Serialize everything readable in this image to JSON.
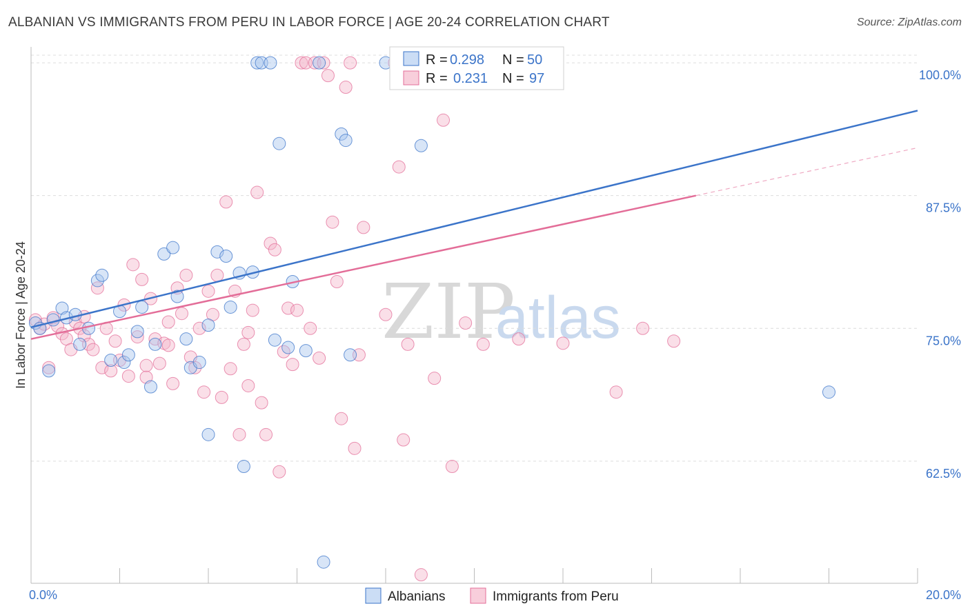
{
  "title": "ALBANIAN VS IMMIGRANTS FROM PERU IN LABOR FORCE | AGE 20-24 CORRELATION CHART",
  "source": "Source: ZipAtlas.com",
  "watermark": {
    "zip": "ZIP",
    "atlas": "atlas"
  },
  "colors": {
    "blue": "#3b74c9",
    "blue_fill": "#a9c6ee",
    "pink": "#e36d98",
    "pink_fill": "#f5b9cc",
    "grid": "#dcdcdc"
  },
  "legend_top": {
    "rows": [
      {
        "r_label": "R = ",
        "r_value": "0.298",
        "n_label": "N = ",
        "n_value": "50"
      },
      {
        "r_label": "R = ",
        "r_value": "0.231",
        "n_label": "N = ",
        "n_value": "97"
      }
    ]
  },
  "legend_bottom": [
    "Albanians",
    "Immigrants from Peru"
  ],
  "chart_data": {
    "type": "scatter",
    "title": "ALBANIAN VS IMMIGRANTS FROM PERU IN LABOR FORCE | AGE 20-24 CORRELATION CHART",
    "xlabel": "",
    "ylabel": "In Labor Force | Age 20-24",
    "xlim": [
      0,
      20
    ],
    "ylim": [
      51,
      101.5
    ],
    "x_tick_labels": [
      "0.0%",
      "20.0%"
    ],
    "y_ticks": [
      62.5,
      75.0,
      87.5,
      100.0
    ],
    "y_tick_labels": [
      "62.5%",
      "75.0%",
      "87.5%",
      "100.0%"
    ],
    "grid": "horizontal dashed",
    "legend_placement": "top-center",
    "series": [
      {
        "name": "Albanians",
        "r": 0.298,
        "n": 50,
        "trend": {
          "x": [
            0.0,
            20.0
          ],
          "y": [
            75.1,
            95.5
          ]
        },
        "points": [
          [
            0.1,
            75.5
          ],
          [
            0.2,
            75.0
          ],
          [
            0.4,
            71.0
          ],
          [
            0.5,
            75.8
          ],
          [
            0.7,
            76.9
          ],
          [
            0.8,
            76.0
          ],
          [
            1.0,
            76.3
          ],
          [
            1.1,
            73.5
          ],
          [
            1.3,
            75.0
          ],
          [
            1.5,
            79.5
          ],
          [
            1.6,
            80.0
          ],
          [
            1.8,
            72.0
          ],
          [
            2.0,
            76.6
          ],
          [
            2.1,
            71.8
          ],
          [
            2.2,
            72.5
          ],
          [
            2.4,
            74.7
          ],
          [
            2.5,
            77.0
          ],
          [
            2.7,
            69.5
          ],
          [
            2.8,
            73.5
          ],
          [
            3.0,
            82.0
          ],
          [
            3.2,
            82.6
          ],
          [
            3.3,
            78.0
          ],
          [
            3.5,
            74.0
          ],
          [
            3.6,
            71.3
          ],
          [
            3.8,
            71.8
          ],
          [
            4.0,
            65.0
          ],
          [
            4.0,
            75.3
          ],
          [
            4.2,
            82.2
          ],
          [
            4.4,
            81.8
          ],
          [
            4.5,
            77.0
          ],
          [
            4.7,
            80.2
          ],
          [
            4.8,
            62.0
          ],
          [
            5.0,
            80.3
          ],
          [
            5.1,
            100.0
          ],
          [
            5.2,
            100.0
          ],
          [
            5.4,
            100.0
          ],
          [
            5.5,
            73.9
          ],
          [
            5.6,
            92.4
          ],
          [
            5.8,
            73.2
          ],
          [
            5.9,
            79.4
          ],
          [
            6.2,
            72.9
          ],
          [
            6.5,
            100.0
          ],
          [
            6.6,
            53.0
          ],
          [
            7.0,
            93.3
          ],
          [
            7.1,
            92.7
          ],
          [
            7.2,
            72.5
          ],
          [
            8.0,
            100.0
          ],
          [
            8.5,
            100.0
          ],
          [
            8.8,
            92.2
          ],
          [
            18.0,
            69.0
          ]
        ]
      },
      {
        "name": "Immigrants from Peru",
        "r": 0.231,
        "n": 97,
        "trend": {
          "x": [
            0.0,
            15.0
          ],
          "y": [
            74.0,
            87.5
          ]
        },
        "trend_ext": {
          "x": [
            15.0,
            20.0
          ],
          "y": [
            87.5,
            92.0
          ]
        },
        "points": [
          [
            0.1,
            75.8
          ],
          [
            0.2,
            75.0
          ],
          [
            0.3,
            75.4
          ],
          [
            0.4,
            71.3
          ],
          [
            0.5,
            76.0
          ],
          [
            0.6,
            75.2
          ],
          [
            0.7,
            74.5
          ],
          [
            0.8,
            74.0
          ],
          [
            0.9,
            73.0
          ],
          [
            1.0,
            75.6
          ],
          [
            1.1,
            75.0
          ],
          [
            1.2,
            74.3
          ],
          [
            1.3,
            73.5
          ],
          [
            1.4,
            73.0
          ],
          [
            1.5,
            78.8
          ],
          [
            1.6,
            71.3
          ],
          [
            1.7,
            75.0
          ],
          [
            1.8,
            71.0
          ],
          [
            1.9,
            73.8
          ],
          [
            2.0,
            72.0
          ],
          [
            2.1,
            77.2
          ],
          [
            2.2,
            70.5
          ],
          [
            2.3,
            81.0
          ],
          [
            2.4,
            74.2
          ],
          [
            2.5,
            79.6
          ],
          [
            2.6,
            70.4
          ],
          [
            2.7,
            77.8
          ],
          [
            2.8,
            74.0
          ],
          [
            2.9,
            71.7
          ],
          [
            3.0,
            73.6
          ],
          [
            3.1,
            75.6
          ],
          [
            3.2,
            69.8
          ],
          [
            3.3,
            78.8
          ],
          [
            3.4,
            76.4
          ],
          [
            3.5,
            80.0
          ],
          [
            3.6,
            72.3
          ],
          [
            3.7,
            71.3
          ],
          [
            3.8,
            75.0
          ],
          [
            3.9,
            69.0
          ],
          [
            4.0,
            78.5
          ],
          [
            4.1,
            76.3
          ],
          [
            4.2,
            80.0
          ],
          [
            4.3,
            68.5
          ],
          [
            4.4,
            86.9
          ],
          [
            4.5,
            71.2
          ],
          [
            4.6,
            78.5
          ],
          [
            4.7,
            65.0
          ],
          [
            4.8,
            73.5
          ],
          [
            4.9,
            69.6
          ],
          [
            5.0,
            76.7
          ],
          [
            5.1,
            87.8
          ],
          [
            5.2,
            68.0
          ],
          [
            5.3,
            65.0
          ],
          [
            5.4,
            83.0
          ],
          [
            5.5,
            82.4
          ],
          [
            5.6,
            61.5
          ],
          [
            5.7,
            72.8
          ],
          [
            5.8,
            76.9
          ],
          [
            5.9,
            71.6
          ],
          [
            6.0,
            76.7
          ],
          [
            6.1,
            100.0
          ],
          [
            6.2,
            100.0
          ],
          [
            6.3,
            75.0
          ],
          [
            6.4,
            100.0
          ],
          [
            6.6,
            100.0
          ],
          [
            6.7,
            98.8
          ],
          [
            6.8,
            85.0
          ],
          [
            6.9,
            79.4
          ],
          [
            7.0,
            66.5
          ],
          [
            7.1,
            97.7
          ],
          [
            7.2,
            100.0
          ],
          [
            7.3,
            63.7
          ],
          [
            7.4,
            72.5
          ],
          [
            7.5,
            84.5
          ],
          [
            8.0,
            76.3
          ],
          [
            8.2,
            100.0
          ],
          [
            8.3,
            90.2
          ],
          [
            8.4,
            64.5
          ],
          [
            8.5,
            73.5
          ],
          [
            8.8,
            51.8
          ],
          [
            8.9,
            98.2
          ],
          [
            9.1,
            70.3
          ],
          [
            9.3,
            94.6
          ],
          [
            9.5,
            62.0
          ],
          [
            9.8,
            75.5
          ],
          [
            10.2,
            73.5
          ],
          [
            10.6,
            100.0
          ],
          [
            11.0,
            74.0
          ],
          [
            12.0,
            73.6
          ],
          [
            13.2,
            69.0
          ],
          [
            13.8,
            75.0
          ],
          [
            14.5,
            73.8
          ],
          [
            3.1,
            73.4
          ],
          [
            1.2,
            76.1
          ],
          [
            2.6,
            71.5
          ],
          [
            4.9,
            74.6
          ],
          [
            6.5,
            72.2
          ]
        ]
      }
    ]
  }
}
